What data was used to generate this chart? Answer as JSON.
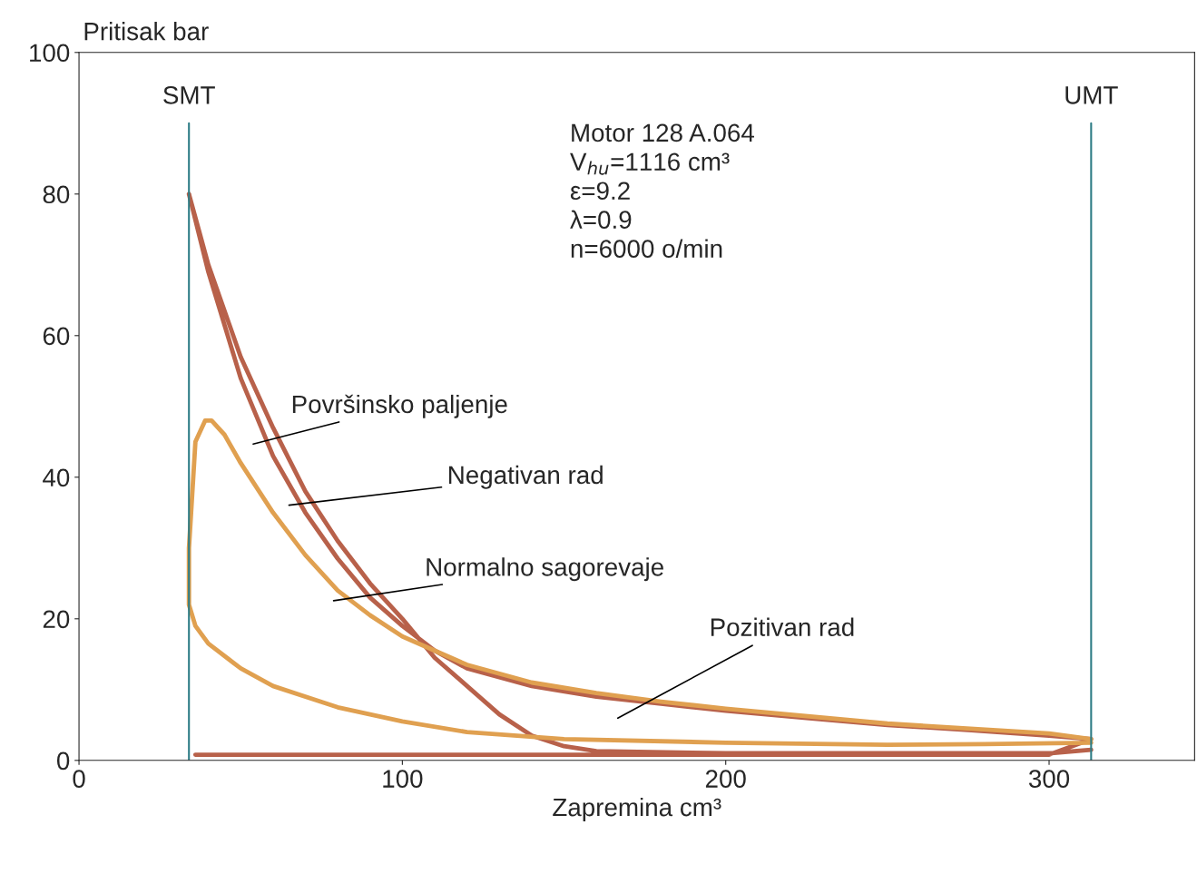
{
  "chart_data": {
    "type": "line",
    "xlabel": "Zapremina cm³",
    "ylabel": "Pritisak bar",
    "xlim": [
      0,
      345
    ],
    "ylim": [
      0,
      100
    ],
    "xticks": [
      0,
      100,
      200,
      300
    ],
    "yticks": [
      0,
      20,
      40,
      60,
      80,
      100
    ],
    "grid": false,
    "legend": false,
    "marker": "none",
    "line_style": "solid",
    "series": [
      {
        "color": "#b8614a",
        "x": [
          313,
          300,
          250,
          200,
          160,
          150,
          140,
          130,
          120,
          110,
          100,
          90,
          80,
          70,
          60,
          50,
          40,
          34,
          40,
          50,
          60,
          70,
          80,
          90,
          100,
          110,
          120,
          140,
          160,
          180,
          200,
          225,
          250,
          275,
          300,
          313,
          300,
          250,
          200,
          150,
          100,
          50,
          36
        ],
        "values": [
          1.5,
          1,
          1,
          1,
          1.3,
          2,
          3.5,
          6.5,
          10.5,
          14.5,
          20,
          25,
          31,
          38,
          47,
          57,
          70,
          80,
          69,
          54,
          43,
          35,
          28.5,
          23,
          19,
          15.5,
          13,
          10.5,
          9,
          8,
          7,
          6,
          5,
          4.3,
          3.5,
          3,
          0.8,
          0.8,
          0.8,
          0.8,
          0.8,
          0.8,
          0.8
        ]
      },
      {
        "color": "#e0a050",
        "x": [
          313,
          280,
          250,
          200,
          150,
          120,
          100,
          80,
          60,
          50,
          40,
          36,
          34,
          34,
          36,
          39,
          41,
          45,
          50,
          60,
          70,
          80,
          90,
          100,
          120,
          140,
          160,
          180,
          200,
          250,
          300,
          313
        ],
        "values": [
          2.5,
          2.3,
          2.2,
          2.5,
          3,
          4,
          5.5,
          7.5,
          10.5,
          13,
          16.5,
          19,
          22,
          30,
          45,
          48,
          48,
          46,
          42,
          35,
          29,
          24,
          20.5,
          17.5,
          13.5,
          11,
          9.5,
          8.3,
          7.3,
          5.2,
          3.8,
          3
        ]
      }
    ],
    "ref_lines": [
      {
        "axis": "x",
        "value": 34,
        "label": "SMT",
        "color": "#2e7d86"
      },
      {
        "axis": "x",
        "value": 313,
        "label": "UMT",
        "color": "#2e7d86"
      }
    ],
    "annotations": [
      "Površinsko paljenje",
      "Negativan rad",
      "Normalno sagorevaje",
      "Pozitivan rad",
      "Motor 128 A.064\nV$_{hu}$=1116 cm³\nε=9.2\nλ=0.9\nn=6000 o/min"
    ]
  }
}
